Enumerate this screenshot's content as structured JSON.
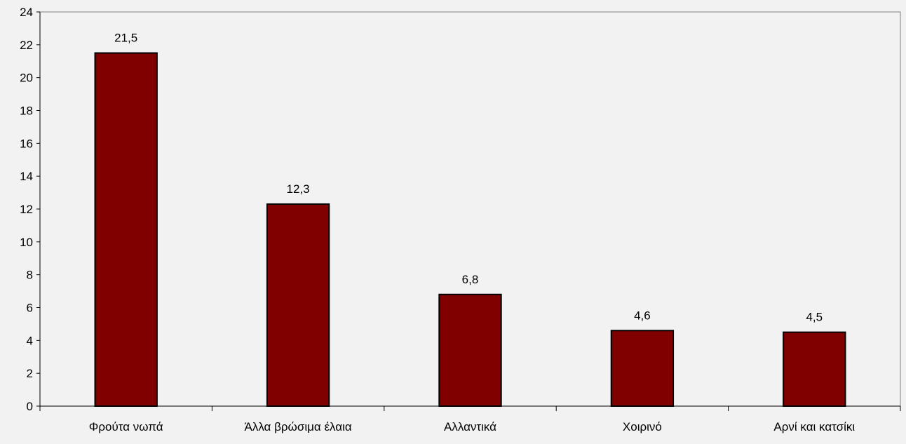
{
  "chart_data": {
    "type": "bar",
    "categories": [
      "Φρούτα νωπά",
      "Άλλα βρώσιμα έλαια",
      "Αλλαντικά",
      "Χοιρινό",
      "Αρνί και κατσίκι"
    ],
    "values": [
      21.5,
      12.3,
      6.8,
      4.6,
      4.5
    ],
    "value_labels": [
      "21,5",
      "12,3",
      "6,8",
      "4,6",
      "4,5"
    ],
    "title": "",
    "xlabel": "",
    "ylabel": "",
    "ylim": [
      0,
      24
    ],
    "yticks": [
      0,
      2,
      4,
      6,
      8,
      10,
      12,
      14,
      16,
      18,
      20,
      22,
      24
    ],
    "grid": false,
    "legend": "none",
    "bar_color": "#800000",
    "bar_edge_color": "#000000",
    "background_color": "#f2f2f2"
  }
}
